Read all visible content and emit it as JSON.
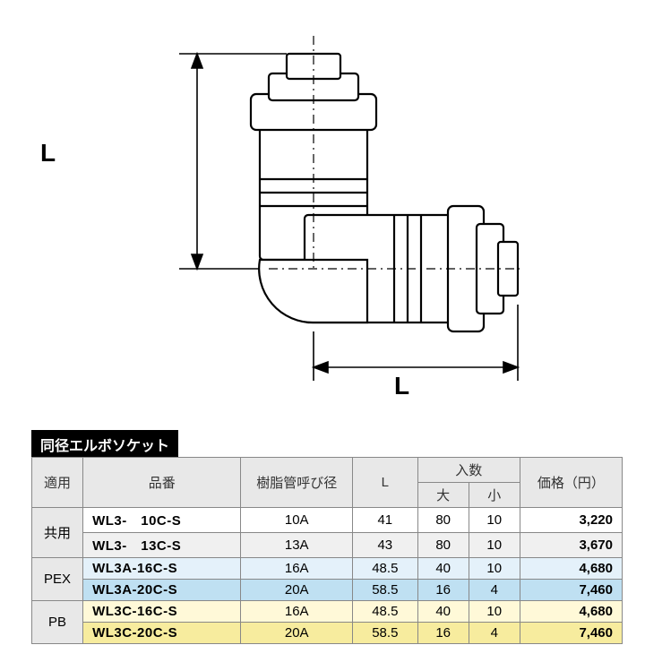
{
  "diagram": {
    "label_L_vertical": "L",
    "label_L_horizontal": "L"
  },
  "table": {
    "title": "同径エルボソケット",
    "columns": {
      "application": "適用",
      "partno": "品番",
      "pipe_dia": "樹脂管呼び径",
      "L": "L",
      "qty": "入数",
      "qty_large": "大",
      "qty_small": "小",
      "price": "価格（円）"
    },
    "col_widths": {
      "app": 55,
      "partno": 170,
      "dia": 120,
      "L": 70,
      "ql": 55,
      "qs": 55,
      "price": 110
    },
    "groups": [
      {
        "label": "共用",
        "row_classes": [
          "row-common1",
          "row-common2"
        ],
        "rows": [
          {
            "partno": "WL3-　10C-S",
            "dia": "10A",
            "L": "41",
            "ql": "80",
            "qs": "10",
            "price": "3,220"
          },
          {
            "partno": "WL3-　13C-S",
            "dia": "13A",
            "L": "43",
            "ql": "80",
            "qs": "10",
            "price": "3,670"
          }
        ]
      },
      {
        "label": "PEX",
        "row_classes": [
          "row-pex1",
          "row-pex2"
        ],
        "rows": [
          {
            "partno": "WL3A-16C-S",
            "dia": "16A",
            "L": "48.5",
            "ql": "40",
            "qs": "10",
            "price": "4,680"
          },
          {
            "partno": "WL3A-20C-S",
            "dia": "20A",
            "L": "58.5",
            "ql": "16",
            "qs": "4",
            "price": "7,460"
          }
        ]
      },
      {
        "label": "PB",
        "row_classes": [
          "row-pb1",
          "row-pb2"
        ],
        "rows": [
          {
            "partno": "WL3C-16C-S",
            "dia": "16A",
            "L": "48.5",
            "ql": "40",
            "qs": "10",
            "price": "4,680"
          },
          {
            "partno": "WL3C-20C-S",
            "dia": "20A",
            "L": "58.5",
            "ql": "16",
            "qs": "4",
            "price": "7,460"
          }
        ]
      }
    ]
  },
  "colors": {
    "stroke": "#000000",
    "fill_light": "#ffffff",
    "dim_line": "#000000"
  }
}
